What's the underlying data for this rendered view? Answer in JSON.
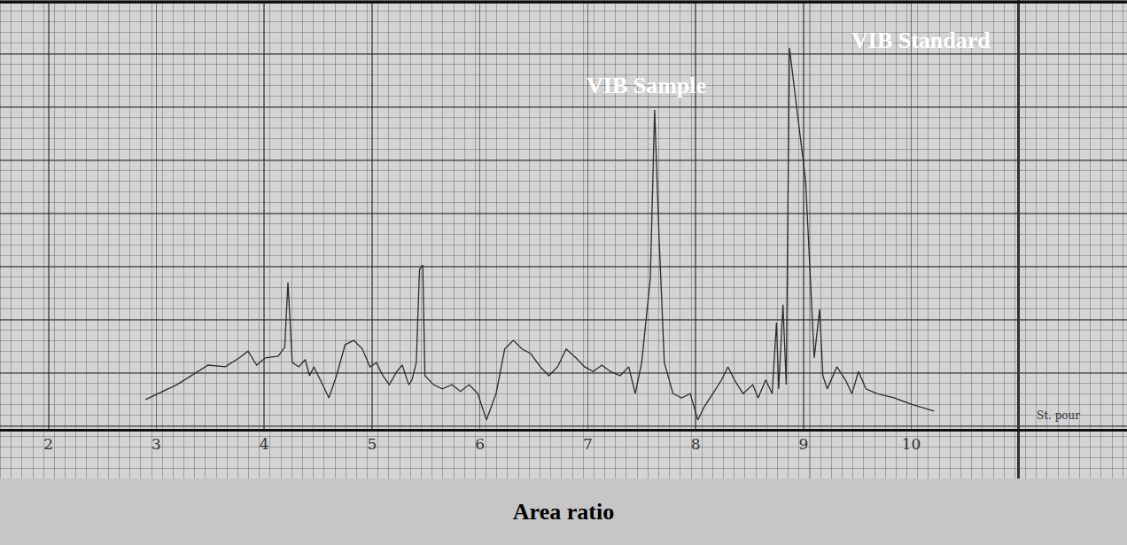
{
  "chart_data": {
    "type": "line",
    "title": "Area ratio",
    "x": [
      2.9,
      3.19,
      3.48,
      3.64,
      3.77,
      3.85,
      3.93,
      4.01,
      4.13,
      4.19,
      4.22,
      4.26,
      4.32,
      4.38,
      4.42,
      4.46,
      4.52,
      4.6,
      4.67,
      4.75,
      4.83,
      4.91,
      4.98,
      5.04,
      5.1,
      5.16,
      5.23,
      5.28,
      5.34,
      5.37,
      5.41,
      5.44,
      5.47,
      5.49,
      5.57,
      5.65,
      5.74,
      5.82,
      5.9,
      5.98,
      6.06,
      6.15,
      6.23,
      6.31,
      6.39,
      6.47,
      6.56,
      6.64,
      6.72,
      6.8,
      6.89,
      6.97,
      7.05,
      7.13,
      7.21,
      7.3,
      7.38,
      7.44,
      7.5,
      7.58,
      7.62,
      7.66,
      7.71,
      7.79,
      7.87,
      7.95,
      8.02,
      8.08,
      8.16,
      8.24,
      8.3,
      8.36,
      8.44,
      8.53,
      8.58,
      8.65,
      8.71,
      8.75,
      8.77,
      8.81,
      8.84,
      8.87,
      8.94,
      9.02,
      9.08,
      9.1,
      9.15,
      9.18,
      9.22,
      9.31,
      9.39,
      9.45,
      9.51,
      9.58,
      9.68,
      9.84,
      10.0,
      10.21
    ],
    "values": [
      0.69,
      1.04,
      1.5,
      1.46,
      1.67,
      1.83,
      1.5,
      1.67,
      1.71,
      1.92,
      3.44,
      1.56,
      1.46,
      1.63,
      1.25,
      1.46,
      1.15,
      0.73,
      1.25,
      1.98,
      2.08,
      1.88,
      1.46,
      1.56,
      1.25,
      1.04,
      1.35,
      1.5,
      1.04,
      1.15,
      1.56,
      3.75,
      3.85,
      1.25,
      1.04,
      0.94,
      1.04,
      0.88,
      1.04,
      0.83,
      0.21,
      0.83,
      1.88,
      2.08,
      1.88,
      1.77,
      1.46,
      1.25,
      1.46,
      1.88,
      1.67,
      1.46,
      1.35,
      1.5,
      1.35,
      1.25,
      1.46,
      0.83,
      1.56,
      3.54,
      7.5,
      4.58,
      1.56,
      0.83,
      0.73,
      0.83,
      0.21,
      0.52,
      0.83,
      1.15,
      1.46,
      1.15,
      0.83,
      1.04,
      0.73,
      1.15,
      0.83,
      2.5,
      0.94,
      2.92,
      1.04,
      8.96,
      7.5,
      5.83,
      2.71,
      1.67,
      2.81,
      1.25,
      0.94,
      1.46,
      1.15,
      0.83,
      1.35,
      0.94,
      0.83,
      0.73,
      0.58,
      0.42
    ],
    "color": "#2b2b2b",
    "xlim": [
      1.55,
      12
    ],
    "ylim": [
      0,
      10
    ],
    "xticks": [
      2,
      3,
      4,
      5,
      6,
      7,
      8,
      9,
      10
    ],
    "tick_labels": "x",
    "grid": true,
    "annotations": [
      {
        "text": "VIB Sample",
        "x": 7.54,
        "y": 8.08
      },
      {
        "text": "VIB Standard",
        "x": 10.09,
        "y": 9.13
      },
      {
        "text": "St. pour",
        "x": 11.36,
        "y": 0.31
      }
    ]
  }
}
